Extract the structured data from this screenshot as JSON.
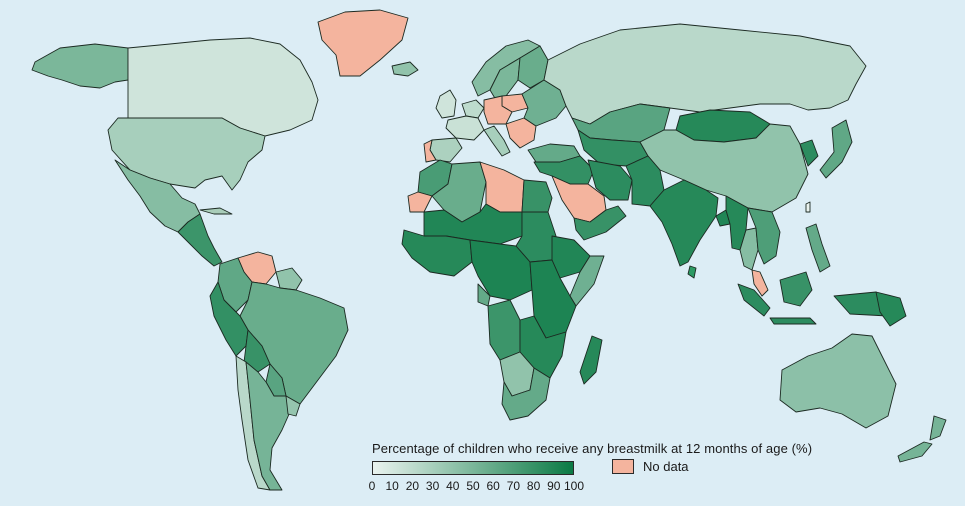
{
  "legend": {
    "title": "Percentage of children who receive any breastmilk at 12 months of age (%)",
    "ticks": [
      "0",
      "10",
      "20",
      "30",
      "40",
      "50",
      "60",
      "70",
      "80",
      "90",
      "100"
    ],
    "no_data_label": "No data"
  },
  "colors": {
    "ocean": "#dcedf5",
    "scale_low": "#eaf3ef",
    "scale_high": "#0b7a45",
    "no_data": "#f4b49e",
    "no_data_value": "#f7f9fa"
  },
  "regions": [
    {
      "name": "Alaska",
      "value": 50
    },
    {
      "name": "Canada",
      "value": 12
    },
    {
      "name": "Greenland",
      "value": null
    },
    {
      "name": "United States",
      "value": 30
    },
    {
      "name": "Mexico",
      "value": 45
    },
    {
      "name": "Central America",
      "value": 78
    },
    {
      "name": "Venezuela",
      "value": null
    },
    {
      "name": "Colombia",
      "value": 62
    },
    {
      "name": "Guianas",
      "value": 40
    },
    {
      "name": "Brazil",
      "value": 58
    },
    {
      "name": "Peru and Ecuador",
      "value": 82
    },
    {
      "name": "Bolivia",
      "value": 80
    },
    {
      "name": "Paraguay",
      "value": 65
    },
    {
      "name": "Chile",
      "value": 22
    },
    {
      "name": "Argentina",
      "value": 52
    },
    {
      "name": "Uruguay",
      "value": 38
    },
    {
      "name": "Iceland",
      "value": 40
    },
    {
      "name": "United Kingdom and Ireland",
      "value": 12
    },
    {
      "name": "Norway",
      "value": 45
    },
    {
      "name": "Sweden",
      "value": 50
    },
    {
      "name": "Finland",
      "value": 58
    },
    {
      "name": "Western Europe",
      "value": 20
    },
    {
      "name": "France",
      "value": 15
    },
    {
      "name": "Iberia",
      "value": 28
    },
    {
      "name": "Portugal",
      "value": null
    },
    {
      "name": "Poland",
      "value": null
    },
    {
      "name": "Germany",
      "value": null
    },
    {
      "name": "Balkans",
      "value": null
    },
    {
      "name": "Eastern Europe",
      "value": 55
    },
    {
      "name": "Italy",
      "value": 30
    },
    {
      "name": "Russia",
      "value": 22
    },
    {
      "name": "Kazakhstan",
      "value": 65
    },
    {
      "name": "Central Asia",
      "value": 82
    },
    {
      "name": "Turkey",
      "value": 60
    },
    {
      "name": "Mongolia",
      "value": 88
    },
    {
      "name": "China",
      "value": 40
    },
    {
      "name": "Korea",
      "value": 85
    },
    {
      "name": "Japan",
      "value": 62
    },
    {
      "name": "Middle East",
      "value": 82
    },
    {
      "name": "Saudi Arabia",
      "value": null
    },
    {
      "name": "Yemen and Oman",
      "value": 80
    },
    {
      "name": "Iran",
      "value": 85
    },
    {
      "name": "Afghanistan and Pakistan",
      "value": 85
    },
    {
      "name": "India",
      "value": 88
    },
    {
      "name": "Bangladesh",
      "value": 90
    },
    {
      "name": "Myanmar",
      "value": 88
    },
    {
      "name": "Thailand",
      "value": 45
    },
    {
      "name": "Vietnam, Laos and Cambodia",
      "value": 70
    },
    {
      "name": "Malaysia",
      "value": null
    },
    {
      "name": "Indonesia",
      "value": 85
    },
    {
      "name": "Borneo",
      "value": 80
    },
    {
      "name": "Papua New Guinea",
      "value": 88
    },
    {
      "name": "Philippines",
      "value": 60
    },
    {
      "name": "Australia",
      "value": 42
    },
    {
      "name": "New Zealand",
      "value": 52
    },
    {
      "name": "Morocco",
      "value": 72
    },
    {
      "name": "Western Sahara",
      "value": null
    },
    {
      "name": "Algeria",
      "value": 58
    },
    {
      "name": "Libya",
      "value": null
    },
    {
      "name": "Egypt",
      "value": 80
    },
    {
      "name": "Sahel",
      "value": 90
    },
    {
      "name": "West Africa",
      "value": 88
    },
    {
      "name": "Sudan",
      "value": 85
    },
    {
      "name": "Ethiopia",
      "value": 90
    },
    {
      "name": "Somalia",
      "value": 55
    },
    {
      "name": "Central Africa",
      "value": 92
    },
    {
      "name": "Gabon",
      "value": 60
    },
    {
      "name": "East Africa",
      "value": 92
    },
    {
      "name": "Angola",
      "value": 78
    },
    {
      "name": "Zambia and Mozambique",
      "value": 88
    },
    {
      "name": "Namibia and Botswana",
      "value": 40
    },
    {
      "name": "South Africa",
      "value": 60
    },
    {
      "name": "Madagascar",
      "value": 88
    }
  ]
}
